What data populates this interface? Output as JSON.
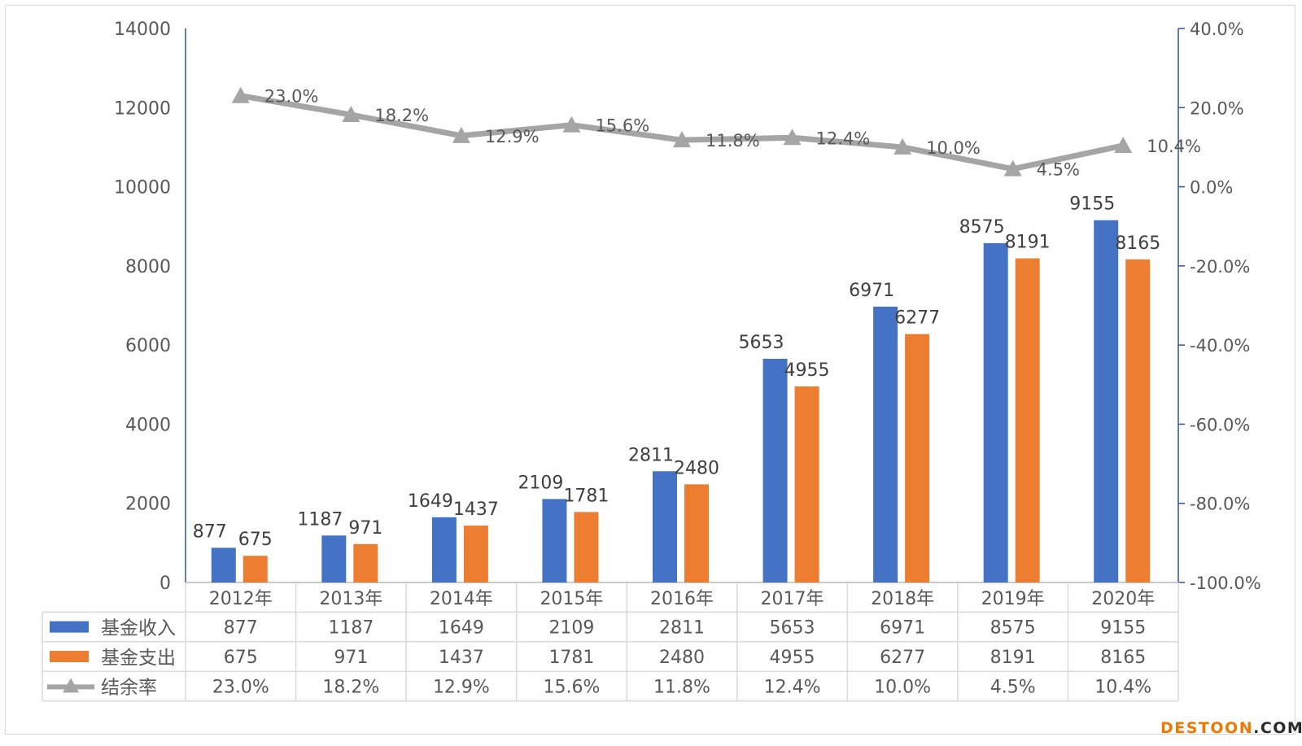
{
  "chart_data": {
    "type": "bar",
    "categories": [
      "2012年",
      "2013年",
      "2014年",
      "2015年",
      "2016年",
      "2017年",
      "2018年",
      "2019年",
      "2020年"
    ],
    "series": [
      {
        "name": "基金收入",
        "type": "bar",
        "axis": "left",
        "color": "#4472c4",
        "values": [
          877,
          1187,
          1649,
          2109,
          2811,
          5653,
          6971,
          8575,
          9155
        ],
        "labels": [
          "877",
          "1187",
          "1649",
          "2109",
          "2811",
          "5653",
          "6971",
          "8575",
          "9155"
        ]
      },
      {
        "name": "基金支出",
        "type": "bar",
        "axis": "left",
        "color": "#ed7d31",
        "values": [
          675,
          971,
          1437,
          1781,
          2480,
          4955,
          6277,
          8191,
          8165
        ],
        "labels": [
          "675",
          "971",
          "1437",
          "1781",
          "2480",
          "4955",
          "6277",
          "8191",
          "8165"
        ]
      },
      {
        "name": "结余率",
        "type": "line",
        "axis": "right",
        "color": "#a5a5a5",
        "marker": "triangle",
        "values": [
          23.0,
          18.2,
          12.9,
          15.6,
          11.8,
          12.4,
          10.0,
          4.5,
          10.4
        ],
        "labels": [
          "23.0%",
          "18.2%",
          "12.9%",
          "15.6%",
          "11.8%",
          "12.4%",
          "10.0%",
          "4.5%",
          "10.4%"
        ]
      }
    ],
    "ylim": [
      0,
      14000
    ],
    "y_ticks": [
      "0",
      "2000",
      "4000",
      "6000",
      "8000",
      "10000",
      "12000",
      "14000"
    ],
    "y2lim": [
      -100,
      40
    ],
    "y2_ticks": [
      "-100.0%",
      "-80.0%",
      "-60.0%",
      "-40.0%",
      "-20.0%",
      "0.0%",
      "20.0%",
      "40.0%"
    ],
    "legend": "data-table",
    "grid": false
  },
  "watermark": {
    "part1": "DESTOON",
    "part2": ".COM"
  }
}
